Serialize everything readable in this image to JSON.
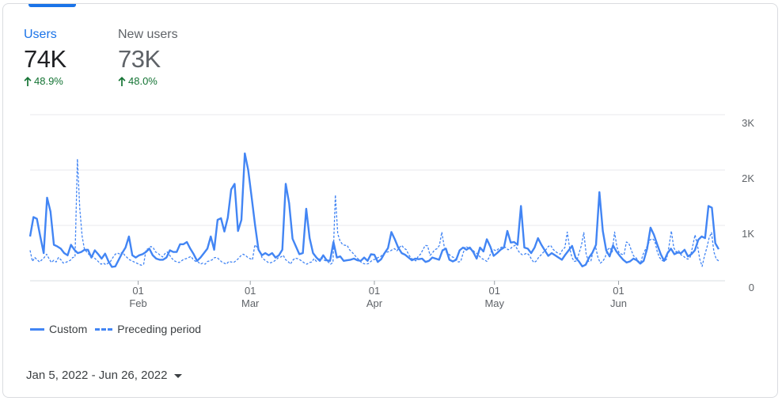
{
  "metrics": {
    "users": {
      "label": "Users",
      "value": "74K",
      "change": "48.9%"
    },
    "new_users": {
      "label": "New users",
      "value": "73K",
      "change": "48.0%"
    }
  },
  "date_range": "Jan 5, 2022 - Jun 26, 2022",
  "colors": {
    "accent": "#1a73e8",
    "series": "#4285f4",
    "positive": "#137333",
    "grid": "#e8eaed"
  },
  "icons": {
    "change": "arrow-up-icon",
    "date_picker": "caret-down-icon"
  },
  "chart_data": {
    "type": "line",
    "x_start": "2022-01-05",
    "x_end": "2022-06-26",
    "ylim": [
      0,
      3000
    ],
    "y_ticks": [
      0,
      1000,
      2000,
      3000
    ],
    "y_tick_labels": [
      "0",
      "1K",
      "2K",
      "3K"
    ],
    "x_ticks": [
      {
        "date": "2022-02-01",
        "day": "01",
        "month": "Feb"
      },
      {
        "date": "2022-03-01",
        "day": "01",
        "month": "Mar"
      },
      {
        "date": "2022-04-01",
        "day": "01",
        "month": "Apr"
      },
      {
        "date": "2022-05-01",
        "day": "01",
        "month": "May"
      },
      {
        "date": "2022-06-01",
        "day": "01",
        "month": "Jun"
      }
    ],
    "grid": true,
    "legend_position": "bottom-left",
    "series": [
      {
        "name": "Custom",
        "style": "solid",
        "values": [
          800,
          1150,
          1120,
          800,
          500,
          1500,
          1250,
          650,
          620,
          580,
          500,
          460,
          650,
          560,
          500,
          520,
          560,
          560,
          420,
          550,
          480,
          400,
          490,
          350,
          250,
          260,
          380,
          500,
          600,
          800,
          460,
          420,
          460,
          480,
          520,
          580,
          460,
          400,
          380,
          380,
          420,
          550,
          520,
          520,
          660,
          660,
          700,
          580,
          480,
          360,
          420,
          500,
          580,
          800,
          560,
          1100,
          1130,
          890,
          1140,
          1650,
          1750,
          900,
          1100,
          2300,
          2000,
          1500,
          1000,
          560,
          460,
          500,
          460,
          500,
          420,
          460,
          560,
          1750,
          1400,
          760,
          620,
          480,
          500,
          1300,
          770,
          500,
          420,
          360,
          460,
          370,
          360,
          700,
          420,
          440,
          360,
          370,
          380,
          400,
          370,
          360,
          420,
          360,
          480,
          470,
          340,
          390,
          500,
          590,
          880,
          750,
          600,
          500,
          470,
          420,
          370,
          400,
          390,
          400,
          340,
          360,
          420,
          400,
          380,
          550,
          580,
          380,
          350,
          380,
          550,
          600,
          560,
          600,
          520,
          400,
          600,
          530,
          750,
          620,
          450,
          500,
          560,
          600,
          900,
          690,
          700,
          650,
          1350,
          600,
          580,
          500,
          600,
          770,
          650,
          550,
          450,
          500,
          460,
          420,
          380,
          470,
          550,
          630,
          420,
          350,
          260,
          290,
          420,
          510,
          650,
          1600,
          900,
          550,
          440,
          640,
          530,
          450,
          380,
          330,
          350,
          400,
          370,
          310,
          360,
          580,
          960,
          830,
          650,
          480,
          360,
          500,
          580,
          480,
          510,
          500,
          560,
          440,
          480,
          550,
          740,
          800,
          770,
          1350,
          1320,
          680,
          570
        ]
      },
      {
        "name": "Preceding period",
        "style": "dashed",
        "values": [
          550,
          350,
          420,
          380,
          340,
          380,
          420,
          480,
          400,
          330,
          370,
          340,
          420,
          380,
          320,
          330,
          350,
          370,
          420,
          430,
          2200,
          1300,
          800,
          560,
          520,
          470,
          450,
          420,
          380,
          340,
          300,
          320,
          290,
          320,
          350,
          420,
          480,
          500,
          480,
          520,
          460,
          420,
          380,
          360,
          340,
          320,
          300,
          280,
          300,
          560,
          580,
          620,
          600,
          520,
          500,
          460,
          430,
          490,
          520,
          460,
          400,
          360,
          340,
          330,
          360,
          390,
          400,
          420,
          440,
          380,
          350,
          340,
          300,
          320,
          300,
          350,
          360,
          380,
          420,
          420,
          380,
          340,
          320,
          300,
          350,
          340,
          330,
          360,
          400,
          450,
          480,
          460,
          420,
          400,
          380,
          650,
          600,
          540,
          420,
          380,
          350,
          320,
          330,
          350,
          380,
          420,
          430,
          460,
          380,
          350,
          300,
          370,
          410,
          400,
          380,
          350,
          320,
          300,
          330,
          340,
          400,
          350,
          390,
          420,
          380,
          360,
          340,
          300,
          330,
          1550,
          850,
          720,
          660,
          640,
          640,
          560,
          520,
          470,
          420,
          380,
          330,
          310,
          300,
          310,
          350,
          380,
          390,
          420,
          430,
          480,
          500,
          520,
          530,
          560,
          580,
          540,
          600,
          640,
          590,
          560,
          470,
          410,
          380,
          360,
          440,
          480,
          560,
          640,
          630,
          460,
          500,
          560,
          580,
          640,
          880,
          620,
          510,
          480,
          440,
          420,
          380,
          340,
          350,
          500,
          620,
          600,
          570,
          560,
          510,
          490,
          440,
          400,
          380,
          350,
          420,
          540,
          560,
          540,
          580,
          600,
          620,
          600,
          560,
          580,
          620,
          640,
          560,
          500,
          470,
          480,
          500,
          460,
          380,
          330,
          360,
          430,
          470,
          520,
          560,
          620,
          640,
          570,
          530,
          500,
          480,
          560,
          600,
          880,
          600,
          420,
          350,
          360,
          500,
          640,
          870,
          480,
          350,
          360,
          550,
          610,
          420,
          320,
          350,
          420,
          560,
          600,
          520,
          880,
          610,
          500,
          480,
          470,
          700,
          680,
          560,
          450,
          420,
          360,
          320,
          470,
          560,
          640,
          740,
          760,
          720,
          530,
          420,
          370,
          350,
          390,
          620,
          900,
          600,
          520,
          550,
          470,
          450,
          410,
          390,
          430,
          620,
          830,
          650,
          390,
          260,
          450,
          600,
          780,
          870,
          520,
          390,
          360
        ]
      }
    ]
  }
}
